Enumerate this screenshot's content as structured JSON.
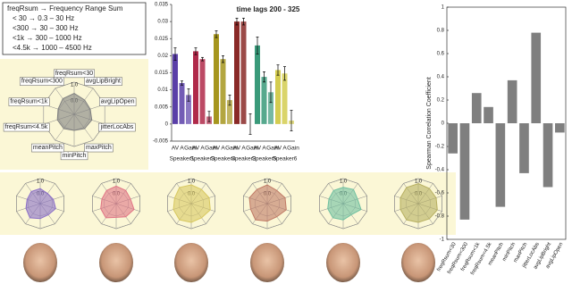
{
  "legend_box": {
    "lines": [
      "freqRsum → Frequency Range Sum",
      "< 30 → 0.3 – 30 Hz",
      "<300 → 30 – 300 Hz",
      "<1k → 300 – 1000 Hz",
      "<4.5k → 1000 – 4500 Hz"
    ]
  },
  "chart_data": [
    {
      "type": "radar",
      "categories": [
        "freqRsum<30",
        "avgLipBright",
        "avgLipOpen",
        "jitterLocAbs",
        "maxPitch",
        "minPitch",
        "meanPitch",
        "freqRsum<4.5k",
        "freqRsum<1k",
        "freqRsum<300"
      ],
      "values": [
        0.3,
        0.1,
        0.05,
        0.15,
        0.1,
        0.0,
        0.1,
        0.1,
        0.05,
        0.2
      ],
      "color": "#808080",
      "rlim": [
        -1,
        1
      ],
      "rticks": [
        {
          "value": 0,
          "label": "0.0"
        },
        {
          "value": 1,
          "label": "1.0"
        }
      ]
    },
    {
      "type": "grouped-bar",
      "title": "time lags 200 - 325",
      "bar_labels": [
        "AV",
        "A",
        "Gain"
      ],
      "groups": [
        {
          "name": "Speaker1",
          "color": "#5a3fa8",
          "values": [
            0.0205,
            0.012,
            0.0085
          ],
          "errors": [
            0.0018,
            0.0006,
            0.0018
          ]
        },
        {
          "name": "Speaker3",
          "color": "#b02a4a",
          "values": [
            0.0213,
            0.019,
            0.0022
          ],
          "errors": [
            0.001,
            0.0005,
            0.0015
          ]
        },
        {
          "name": "Speaker4",
          "color": "#a6961e",
          "values": [
            0.0263,
            0.019,
            0.007
          ],
          "errors": [
            0.001,
            0.001,
            0.0015
          ]
        },
        {
          "name": "Speaker2",
          "color": "#8a2a28",
          "values": [
            0.03,
            0.03,
            0.0
          ],
          "errors": [
            0.001,
            0.001,
            0.003
          ]
        },
        {
          "name": "Speaker5",
          "color": "#3a9a7a",
          "values": [
            0.023,
            0.0138,
            0.0093
          ],
          "errors": [
            0.0025,
            0.0015,
            0.003
          ]
        },
        {
          "name": "Speaker6",
          "color": "#d4cc50",
          "values": [
            0.0158,
            0.0148,
            0.001
          ],
          "errors": [
            0.0015,
            0.002,
            0.003
          ]
        }
      ],
      "ylim": [
        -0.005,
        0.035
      ],
      "yticks": [
        -0.005,
        0,
        0.005,
        0.01,
        0.015,
        0.02,
        0.025,
        0.03,
        0.035
      ]
    },
    {
      "type": "bar",
      "ylabel": "Spearman Correlation Coefficient",
      "categories": [
        "freqRsum<30",
        "freqRsum<300",
        "freqRsum<1k",
        "freqRsum<4.5k",
        "meanPitch",
        "minPitch",
        "maxPitch",
        "jitterLocAbs",
        "avgLipBright",
        "avgLipOpen"
      ],
      "values": [
        -0.26,
        -0.83,
        0.26,
        0.14,
        -0.72,
        0.37,
        -0.43,
        0.78,
        -0.55,
        -0.08
      ],
      "color": "#7f7f7f",
      "ylim": [
        -1,
        1
      ],
      "yticks": [
        -1,
        -0.8,
        -0.6,
        -0.4,
        -0.2,
        0,
        0.2,
        0.4,
        0.6,
        0.8,
        1
      ]
    },
    {
      "type": "radar",
      "values": [
        0.2,
        0.0,
        0.1,
        0.3,
        0.1,
        0.2,
        0.4,
        0.2,
        0.1,
        0.2
      ],
      "color": "#8b6fc7",
      "rlim": [
        -1,
        1
      ],
      "rticks": [
        {
          "value": 0,
          "label": "0.0"
        },
        {
          "value": 1,
          "label": "1.0"
        }
      ]
    },
    {
      "type": "radar",
      "values": [
        0.4,
        0.3,
        0.2,
        0.5,
        0.3,
        0.1,
        0.4,
        0.3,
        0.2,
        0.3
      ],
      "color": "#e07585",
      "rlim": [
        -1,
        1
      ],
      "rticks": [
        {
          "value": 0,
          "label": "0.0"
        },
        {
          "value": 1,
          "label": "1.0"
        }
      ]
    },
    {
      "type": "radar",
      "values": [
        0.5,
        0.4,
        0.5,
        0.6,
        0.4,
        0.5,
        0.6,
        0.5,
        0.4,
        0.6
      ],
      "color": "#d8c860",
      "rlim": [
        -1,
        1
      ],
      "rticks": [
        {
          "value": 0,
          "label": "0.0"
        },
        {
          "value": 1,
          "label": "1.0"
        }
      ]
    },
    {
      "type": "radar",
      "values": [
        0.5,
        0.3,
        0.5,
        0.6,
        0.3,
        0.4,
        0.6,
        0.4,
        0.5,
        0.4
      ],
      "color": "#c07a65",
      "rlim": [
        -1,
        1
      ],
      "rticks": [
        {
          "value": 0,
          "label": "0.0"
        },
        {
          "value": 1,
          "label": "1.0"
        }
      ]
    },
    {
      "type": "radar",
      "values": [
        0.3,
        0.4,
        0.2,
        0.5,
        0.1,
        0.3,
        0.4,
        0.3,
        0.2,
        0.3
      ],
      "color": "#70c0a0",
      "rlim": [
        -1,
        1
      ],
      "rticks": [
        {
          "value": 0,
          "label": "0.0"
        },
        {
          "value": 1,
          "label": "1.0"
        }
      ]
    },
    {
      "type": "radar",
      "values": [
        0.6,
        0.5,
        0.5,
        0.6,
        0.5,
        0.5,
        0.6,
        0.5,
        0.5,
        0.6
      ],
      "color": "#b8b060",
      "rlim": [
        -1,
        1
      ],
      "rticks": [
        {
          "value": 0,
          "label": "0.0"
        },
        {
          "value": 1,
          "label": "1.0"
        }
      ]
    }
  ]
}
